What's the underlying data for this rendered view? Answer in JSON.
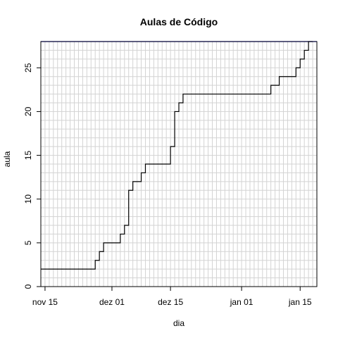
{
  "chart_data": {
    "type": "line",
    "title": "Aulas de Código",
    "xlabel": "dia",
    "ylabel": "aula",
    "x_type": "date",
    "xlim": [
      "2014-11-14",
      "2015-01-19"
    ],
    "ylim": [
      0,
      28
    ],
    "x_ticks": [
      {
        "date": "2014-11-15",
        "label": "nov 15"
      },
      {
        "date": "2014-12-01",
        "label": "dez 01"
      },
      {
        "date": "2014-12-15",
        "label": "dez 15"
      },
      {
        "date": "2015-01-01",
        "label": "jan 01"
      },
      {
        "date": "2015-01-15",
        "label": "jan 15"
      }
    ],
    "y_ticks": [
      0,
      5,
      10,
      15,
      20,
      25
    ],
    "grid": true,
    "series": [
      {
        "step": true,
        "color": "#000000",
        "points": [
          {
            "x": "2014-11-14",
            "y": 2
          },
          {
            "x": "2014-11-27",
            "y": 3
          },
          {
            "x": "2014-11-28",
            "y": 4
          },
          {
            "x": "2014-11-29",
            "y": 5
          },
          {
            "x": "2014-12-03",
            "y": 6
          },
          {
            "x": "2014-12-04",
            "y": 7
          },
          {
            "x": "2014-12-05",
            "y": 11
          },
          {
            "x": "2014-12-06",
            "y": 12
          },
          {
            "x": "2014-12-08",
            "y": 13
          },
          {
            "x": "2014-12-09",
            "y": 14
          },
          {
            "x": "2014-12-15",
            "y": 16
          },
          {
            "x": "2014-12-16",
            "y": 20
          },
          {
            "x": "2014-12-17",
            "y": 21
          },
          {
            "x": "2014-12-18",
            "y": 22
          },
          {
            "x": "2015-01-08",
            "y": 23
          },
          {
            "x": "2015-01-10",
            "y": 24
          },
          {
            "x": "2015-01-14",
            "y": 25
          },
          {
            "x": "2015-01-15",
            "y": 26
          },
          {
            "x": "2015-01-16",
            "y": 27
          },
          {
            "x": "2015-01-17",
            "y": 28
          }
        ]
      }
    ],
    "hlines": [
      {
        "y": 28,
        "color": "#7b7bff"
      }
    ]
  }
}
